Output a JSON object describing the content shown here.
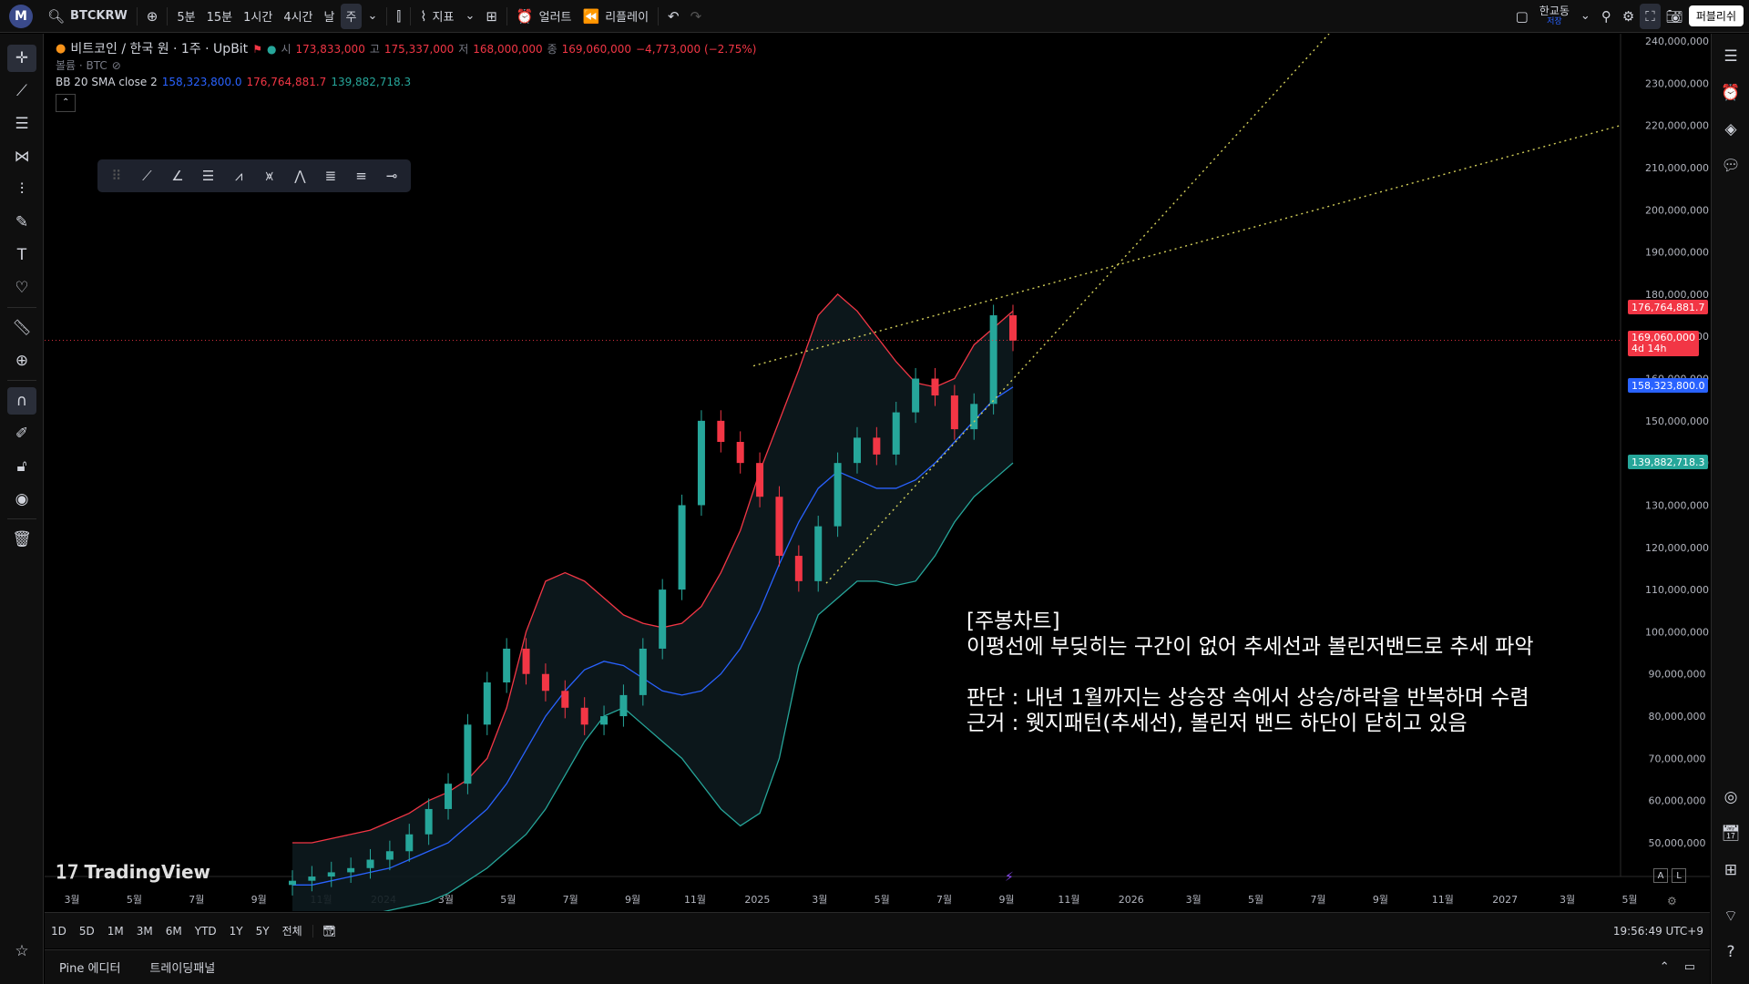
{
  "topbar": {
    "logo": "M",
    "symbol": "BTCKRW",
    "intervals": [
      "5분",
      "15분",
      "1시간",
      "4시간",
      "날",
      "주"
    ],
    "active_interval": "주",
    "indicators_label": "지표",
    "alert_label": "얼러트",
    "replay_label": "리플레이",
    "layout_name": "한교동",
    "layout_sub": "저장",
    "publish_label": "퍼블리쉬"
  },
  "legend": {
    "title": "비트코인 / 한국 원 · 1주 · UpBit",
    "open_label": "시",
    "open": "173,833,000",
    "high_label": "고",
    "high": "175,337,000",
    "low_label": "저",
    "low": "168,000,000",
    "close_label": "종",
    "close": "169,060,000",
    "change": "−4,773,000 (−2.75%)",
    "volume_label": "볼륨 · BTC",
    "bb_label": "BB 20 SMA close 2",
    "bb_basis": "158,323,800.0",
    "bb_upper": "176,764,881.7",
    "bb_lower": "139,882,718.3"
  },
  "price_axis": [
    "240,000,000",
    "230,000,000",
    "220,000,000",
    "210,000,000",
    "200,000,000",
    "190,000,000",
    "180,000,000",
    "170,000,000",
    "160,000,000",
    "150,000,000",
    "140,000,000",
    "130,000,000",
    "120,000,000",
    "110,000,000",
    "100,000,000",
    "90,000,000",
    "80,000,000",
    "70,000,000",
    "60,000,000",
    "50,000,000"
  ],
  "badges": {
    "upper": "176,764,881.7",
    "last": "169,060,000",
    "countdown": "4d 14h",
    "basis": "158,323,800.0",
    "lower": "139,882,718.3"
  },
  "time_axis": [
    "3월",
    "5월",
    "7월",
    "9월",
    "11월",
    "2024",
    "3월",
    "5월",
    "7월",
    "9월",
    "11월",
    "2025",
    "3월",
    "5월",
    "7월",
    "9월",
    "11월",
    "2026",
    "3월",
    "5월",
    "7월",
    "9월",
    "11월",
    "2027",
    "3월",
    "5월"
  ],
  "annotation": {
    "line1": "[주봉차트]",
    "line2": "이평선에 부딪히는 구간이 없어 추세선과 볼린저밴드로 추세 파악",
    "line3": "판단 : 내년 1월까지는 상승장 속에서 상승/하락을 반복하며 수렴",
    "line4": "근거 : 웻지패턴(추세선), 볼린저 밴드 하단이 닫히고 있음"
  },
  "watermark": "TradingView",
  "bottombar": {
    "ranges": [
      "1D",
      "5D",
      "1M",
      "3M",
      "6M",
      "YTD",
      "1Y",
      "5Y",
      "전체"
    ],
    "clock": "19:56:49 UTC+9",
    "scale_a": "A",
    "scale_l": "L"
  },
  "footer": {
    "pine": "Pine 에디터",
    "trading": "트레이딩패널"
  },
  "colors": {
    "up": "#26a69a",
    "down": "#f23645",
    "bb_upper": "#f23645",
    "bb_basis": "#2962ff",
    "bb_lower": "#26a69a",
    "trendline": "#d4d05a"
  },
  "chart_data": {
    "type": "candlestick",
    "series": [
      {
        "name": "BB upper",
        "values": [
          50,
          50,
          51,
          52,
          53,
          55,
          57,
          60,
          62,
          65,
          70,
          82,
          100,
          112,
          114,
          112,
          108,
          104,
          102,
          101,
          102,
          106,
          114,
          124,
          138,
          150,
          162,
          175,
          180,
          176,
          170,
          164,
          159,
          158,
          160,
          168,
          172,
          176
        ]
      },
      {
        "name": "BB basis",
        "values": [
          40,
          40,
          41,
          42,
          43,
          44,
          46,
          48,
          50,
          54,
          58,
          64,
          72,
          80,
          86,
          91,
          93,
          92,
          89,
          86,
          85,
          86,
          90,
          96,
          105,
          116,
          126,
          134,
          138,
          136,
          134,
          134,
          136,
          140,
          145,
          150,
          155,
          158
        ]
      },
      {
        "name": "BB lower",
        "values": [
          32,
          32,
          32,
          33,
          33,
          34,
          35,
          36,
          38,
          41,
          44,
          48,
          52,
          58,
          66,
          74,
          80,
          82,
          78,
          74,
          70,
          64,
          58,
          54,
          57,
          70,
          92,
          104,
          108,
          112,
          112,
          111,
          112,
          118,
          126,
          132,
          136,
          140
        ]
      }
    ],
    "closes": [
      41,
      42,
      43,
      44,
      46,
      48,
      52,
      58,
      64,
      78,
      88,
      96,
      90,
      86,
      82,
      78,
      80,
      85,
      96,
      110,
      130,
      150,
      145,
      140,
      132,
      118,
      112,
      125,
      140,
      146,
      142,
      152,
      160,
      156,
      148,
      154,
      175,
      169
    ]
  }
}
